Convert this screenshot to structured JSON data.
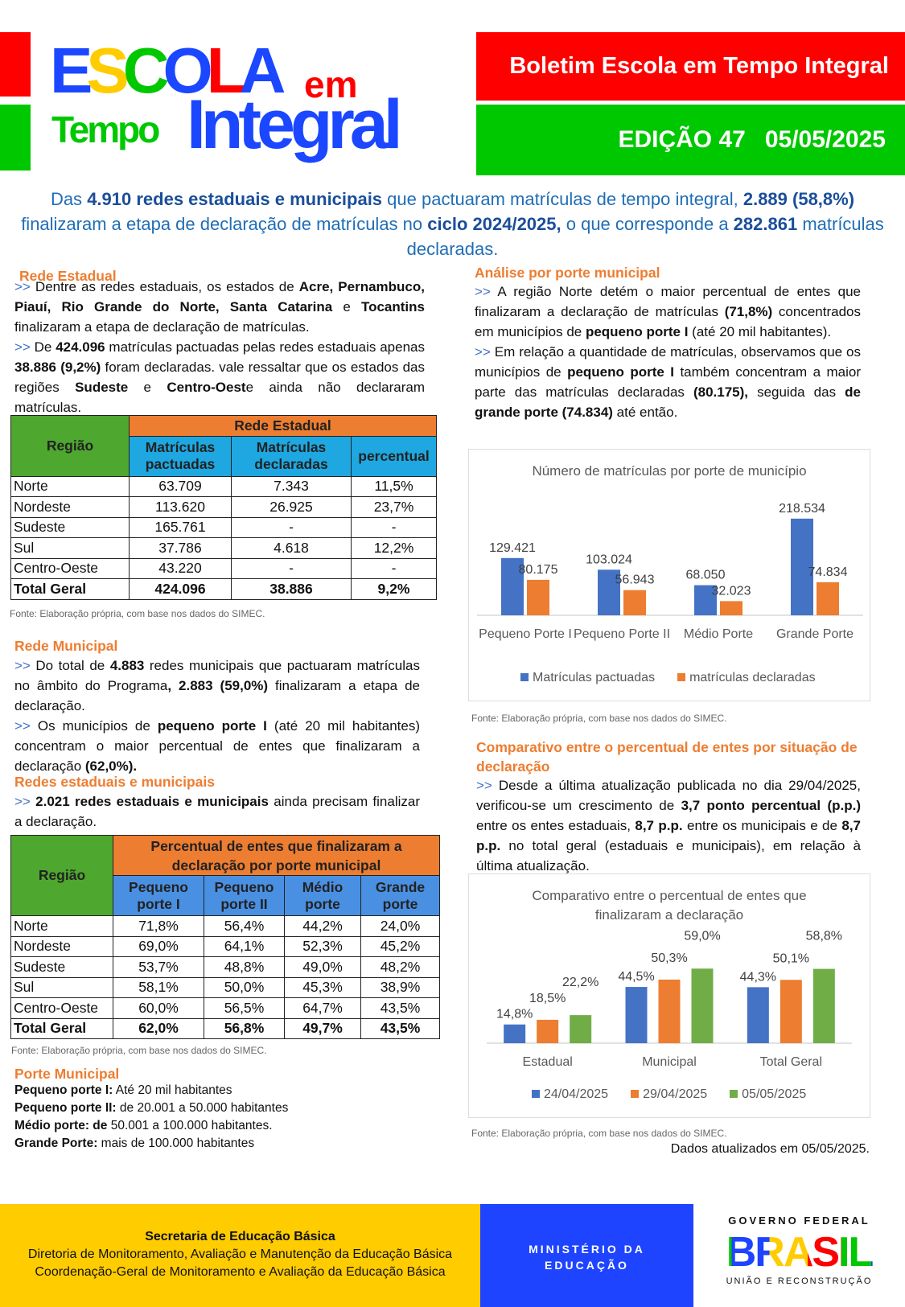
{
  "header": {
    "logo": {
      "line1": "ESCOLA",
      "em": "em",
      "tempo": "Tempo",
      "integral": "Integral"
    },
    "title": "Boletim Escola em Tempo Integral",
    "edition": "EDIÇÃO 47",
    "date": "05/05/2025"
  },
  "intro": [
    {
      "t": "Das "
    },
    {
      "t": "4.910 redes estaduais e municipais",
      "b": 1
    },
    {
      "t": " que pactuaram matrículas de tempo integral, "
    },
    {
      "t": "2.889 (58,8%)",
      "b": 1
    },
    {
      "t": " finalizaram a etapa de declaração de matrículas no "
    },
    {
      "t": "ciclo 2024/2025,",
      "b": 1
    },
    {
      "t": " o que corresponde a "
    },
    {
      "t": "282.861",
      "b": 1
    },
    {
      "t": " matrículas declaradas."
    }
  ],
  "rede_estadual": {
    "heading": "Rede Estadual",
    "p1": [
      {
        "t": ">> ",
        "a": 1
      },
      {
        "t": "Dentre as redes estaduais, os estados de "
      },
      {
        "t": "Acre, Pernambuco, Piauí, Rio Grande do Norte, Santa Catarina",
        "b": 1
      },
      {
        "t": " e "
      },
      {
        "t": "Tocantins",
        "b": 1
      },
      {
        "t": " finalizaram a etapa de declaração de matrículas."
      }
    ],
    "p2": [
      {
        "t": ">> ",
        "a": 1
      },
      {
        "t": "De "
      },
      {
        "t": "424.096",
        "b": 1
      },
      {
        "t": " matrículas pactuadas pelas redes estaduais apenas "
      },
      {
        "t": "38.886 (9,2%)",
        "b": 1
      },
      {
        "t": " foram declaradas. vale ressaltar que os estados das regiões "
      },
      {
        "t": "Sudeste",
        "b": 1
      },
      {
        "t": " e "
      },
      {
        "t": "Centro-Oest",
        "b": 1
      },
      {
        "t": "e ainda não declararam matrículas."
      }
    ],
    "table": {
      "region_header": "Região",
      "group_header": "Rede Estadual",
      "columns": [
        "Matrículas pactuadas",
        "Matrículas declaradas",
        "percentual"
      ],
      "rows": [
        [
          "Norte",
          "63.709",
          "7.343",
          "11,5%"
        ],
        [
          "Nordeste",
          "113.620",
          "26.925",
          "23,7%"
        ],
        [
          "Sudeste",
          "165.761",
          "-",
          "-"
        ],
        [
          "Sul",
          "37.786",
          "4.618",
          "12,2%"
        ],
        [
          "Centro-Oeste",
          "43.220",
          "-",
          "-"
        ],
        [
          "Total Geral",
          "424.096",
          "38.886",
          "9,2%"
        ]
      ]
    },
    "source": "Fonte: Elaboração própria, com base nos dados do SIMEC."
  },
  "rede_municipal": {
    "heading": "Rede Municipal",
    "p1": [
      {
        "t": ">> ",
        "a": 1
      },
      {
        "t": "Do total de "
      },
      {
        "t": "4.883",
        "b": 1
      },
      {
        "t": " redes municipais que pactuaram matrículas no âmbito do Programa"
      },
      {
        "t": ", 2.883 (59,0%)",
        "b": 1
      },
      {
        "t": " finalizaram a etapa de declaração."
      }
    ],
    "p2": [
      {
        "t": ">> ",
        "a": 1
      },
      {
        "t": "Os municípios de "
      },
      {
        "t": "pequeno porte I",
        "b": 1
      },
      {
        "t": " (até 20 mil habitantes) concentram o maior percentual de entes que finalizaram a declaração "
      },
      {
        "t": "(62,0%).",
        "b": 1
      }
    ]
  },
  "redes_ambas": {
    "heading": "Redes estaduais e municipais",
    "p1": [
      {
        "t": ">> ",
        "a": 1
      },
      {
        "t": "2.021 redes estaduais e municipais",
        "b": 1
      },
      {
        "t": " ainda precisam finalizar a declaração."
      }
    ],
    "table": {
      "region_header": "Região",
      "group_header": "Percentual de entes que finalizaram a declaração por porte municipal",
      "columns": [
        "Pequeno porte I",
        "Pequeno porte II",
        "Médio porte",
        "Grande porte"
      ],
      "rows": [
        [
          "Norte",
          "71,8%",
          "56,4%",
          "44,2%",
          "24,0%"
        ],
        [
          "Nordeste",
          "69,0%",
          "64,1%",
          "52,3%",
          "45,2%"
        ],
        [
          "Sudeste",
          "53,7%",
          "48,8%",
          "49,0%",
          "48,2%"
        ],
        [
          "Sul",
          "58,1%",
          "50,0%",
          "45,3%",
          "38,9%"
        ],
        [
          "Centro-Oeste",
          "60,0%",
          "56,5%",
          "64,7%",
          "43,5%"
        ],
        [
          "Total Geral",
          "62,0%",
          "56,8%",
          "49,7%",
          "43,5%"
        ]
      ]
    },
    "source": "Fonte: Elaboração própria, com base nos dados do SIMEC."
  },
  "porte": {
    "heading": "Porte Municipal",
    "items": [
      {
        "k": "Pequeno porte I:",
        "v": " Até 20 mil habitantes"
      },
      {
        "k": "Pequeno porte II:",
        "v": " de 20.001 a 50.000 habitantes"
      },
      {
        "k": "Médio porte: de",
        "v": " 50.001 a 100.000 habitantes."
      },
      {
        "k": "Grande Porte:",
        "v": " mais de 100.000 habitantes"
      }
    ]
  },
  "analise": {
    "heading": "Análise por porte municipal",
    "p1": [
      {
        "t": ">> ",
        "a": 1
      },
      {
        "t": "A região Norte detém o maior percentual de entes que finalizaram a declaração de matrículas "
      },
      {
        "t": "(71,8%)",
        "b": 1
      },
      {
        "t": " concentrados em municípios de "
      },
      {
        "t": "pequeno porte I",
        "b": 1
      },
      {
        "t": " (até 20 mil habitantes)."
      }
    ],
    "p2": [
      {
        "t": ">> ",
        "a": 1
      },
      {
        "t": "Em relação a quantidade de matrículas, observamos que os municípios de "
      },
      {
        "t": "pequeno porte I",
        "b": 1
      },
      {
        "t": " também concentram a maior parte das matrículas declaradas "
      },
      {
        "t": "(80.175),",
        "b": 1
      },
      {
        "t": " seguida das "
      },
      {
        "t": "de grande porte (74.834)",
        "b": 1
      },
      {
        "t": " até então."
      }
    ],
    "source": "Fonte: Elaboração própria, com base nos dados do SIMEC."
  },
  "comparativo": {
    "heading": "Comparativo entre o percentual de entes por situação de declaração",
    "p1": [
      {
        "t": ">> ",
        "a": 1
      },
      {
        "t": "Desde a última atualização publicada no dia 29/04/2025, verificou-se um crescimento de "
      },
      {
        "t": "3,7 ponto percentual (p.p.)",
        "b": 1
      },
      {
        "t": " entre os entes estaduais, "
      },
      {
        "t": "8,7 p.p.",
        "b": 1
      },
      {
        "t": " entre os municipais e de "
      },
      {
        "t": "8,7 p.p.",
        "b": 1
      },
      {
        "t": " no total geral (estaduais e municipais), em relação à última atualização."
      }
    ],
    "source": "Fonte: Elaboração própria, com base nos dados do SIMEC.",
    "updated": "Dados atualizados em 05/05/2025."
  },
  "chart_data": [
    {
      "type": "bar",
      "title": "Número de matrículas por porte de município",
      "categories": [
        "Pequeno Porte I",
        "Pequeno Porte II",
        "Médio Porte",
        "Grande Porte"
      ],
      "series": [
        {
          "name": "Matrículas pactuadas",
          "color": "#4472c4",
          "values": [
            129421,
            103024,
            68050,
            218534
          ],
          "labels": [
            "129.421",
            "103.024",
            "68.050",
            "218.534"
          ]
        },
        {
          "name": "matrículas declaradas",
          "color": "#ed7d31",
          "values": [
            80175,
            56943,
            32023,
            74834
          ],
          "labels": [
            "80.175",
            "56.943",
            "32.023",
            "74.834"
          ]
        }
      ],
      "ylim": [
        0,
        240000
      ],
      "legend": "bottom"
    },
    {
      "type": "bar",
      "title": "Comparativo entre o percentual de entes  que finalizaram a declaração",
      "categories": [
        "Estadual",
        "Municipal",
        "Total Geral"
      ],
      "series": [
        {
          "name": "24/04/2025",
          "color": "#4472c4",
          "values": [
            14.8,
            44.5,
            44.3
          ],
          "labels": [
            "14,8%",
            "44,5%",
            "44,3%"
          ]
        },
        {
          "name": "29/04/2025",
          "color": "#ed7d31",
          "values": [
            18.5,
            50.3,
            50.1
          ],
          "labels": [
            "18,5%",
            "50,3%",
            "50,1%"
          ]
        },
        {
          "name": "05/05/2025",
          "color": "#70ad47",
          "values": [
            22.2,
            59.0,
            58.8
          ],
          "labels": [
            "22,2%",
            "59,0%",
            "58,8%"
          ]
        }
      ],
      "ylim": [
        0,
        70
      ],
      "legend": "bottom"
    }
  ],
  "footer": {
    "org": "Secretaria de Educação Básica",
    "dir": "Diretoria de Monitoramento, Avaliação e Manutenção da Educação Básica",
    "coord": "Coordenação-Geral de Monitoramento e Avaliação da Educação Básica",
    "ministry1": "MINISTÉRIO DA",
    "ministry2": "EDUCAÇÃO",
    "gov": "GOVERNO FEDERAL",
    "brasil": "BRASIL",
    "slogan": "UNIÃO E RECONSTRUÇÃO"
  }
}
